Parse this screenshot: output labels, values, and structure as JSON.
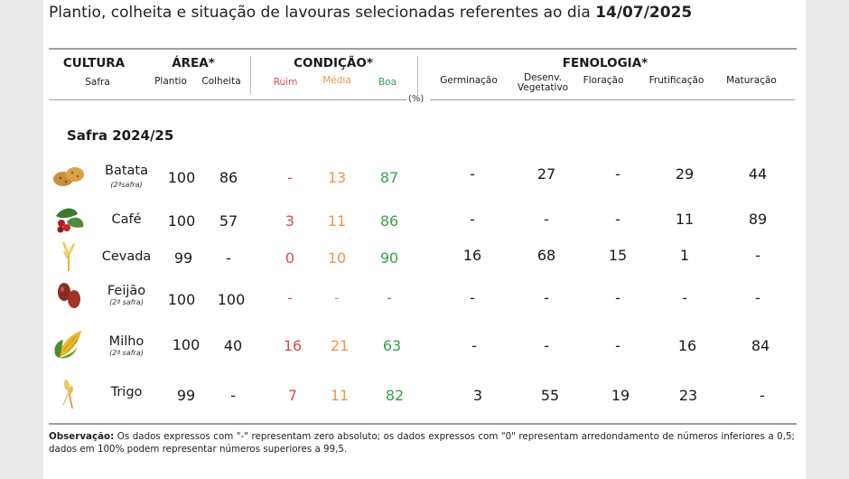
{
  "title": {
    "text": "Plantio, colheita e situação de lavouras selecionadas referentes ao dia",
    "date": "14/07/2025"
  },
  "headers": {
    "cultura": "CULTURA",
    "safra": "Safra",
    "area": "ÁREA*",
    "plantio": "Plantio",
    "colheita": "Colheita",
    "condicao": "CONDIÇÃO*",
    "ruim": "Ruim",
    "media": "Média",
    "boa": "Boa",
    "fenologia": "FENOLOGIA*",
    "germinacao": "Germinação",
    "desenv_1": "Desenv.",
    "desenv_2": "Vegetativo",
    "floracao": "Floração",
    "frutificacao": "Frutificação",
    "maturacao": "Maturação",
    "percent": "(%)"
  },
  "safra_label": "Safra 2024/25",
  "colors": {
    "ruim": "#e0484f",
    "media": "#f0964a",
    "boa": "#3aa24a"
  },
  "rows": [
    {
      "name": "Batata",
      "sub": "(2ªsafra)",
      "icon": "potato-icon",
      "plantio": "100",
      "colheita": "86",
      "ruim": "-",
      "media": "13",
      "boa": "87",
      "germ": "-",
      "veg": "27",
      "flor": "-",
      "frut": "29",
      "mat": "44"
    },
    {
      "name": "Café",
      "sub": "",
      "icon": "coffee-icon",
      "plantio": "100",
      "colheita": "57",
      "ruim": "3",
      "media": "11",
      "boa": "86",
      "germ": "-",
      "veg": "-",
      "flor": "-",
      "frut": "11",
      "mat": "89"
    },
    {
      "name": "Cevada",
      "sub": "",
      "icon": "barley-icon",
      "plantio": "99",
      "colheita": "-",
      "ruim": "0",
      "media": "10",
      "boa": "90",
      "germ": "16",
      "veg": "68",
      "flor": "15",
      "frut": "1",
      "mat": "-"
    },
    {
      "name": "Feijão",
      "sub": "(2ª safra)",
      "icon": "bean-icon",
      "plantio": "100",
      "colheita": "100",
      "ruim": "-",
      "media": "-",
      "boa": "-",
      "germ": "-",
      "veg": "-",
      "flor": "-",
      "frut": "-",
      "mat": "-"
    },
    {
      "name": "Milho",
      "sub": "(2ª safra)",
      "icon": "corn-icon",
      "plantio": "100",
      "colheita": "40",
      "ruim": "16",
      "media": "21",
      "boa": "63",
      "germ": "-",
      "veg": "-",
      "flor": "-",
      "frut": "16",
      "mat": "84"
    },
    {
      "name": "Trigo",
      "sub": "",
      "icon": "wheat-icon",
      "plantio": "99",
      "colheita": "-",
      "ruim": "7",
      "media": "11",
      "boa": "82",
      "germ": "3",
      "veg": "55",
      "flor": "19",
      "frut": "23",
      "mat": "-"
    }
  ],
  "note": {
    "label": "Observação:",
    "text": " Os dados expressos com \"-\" representam zero absoluto; os dados expressos com \"0\" representam arredondamento de números inferiores a 0,5; dados em 100% podem representar números superiores a 99,5."
  }
}
